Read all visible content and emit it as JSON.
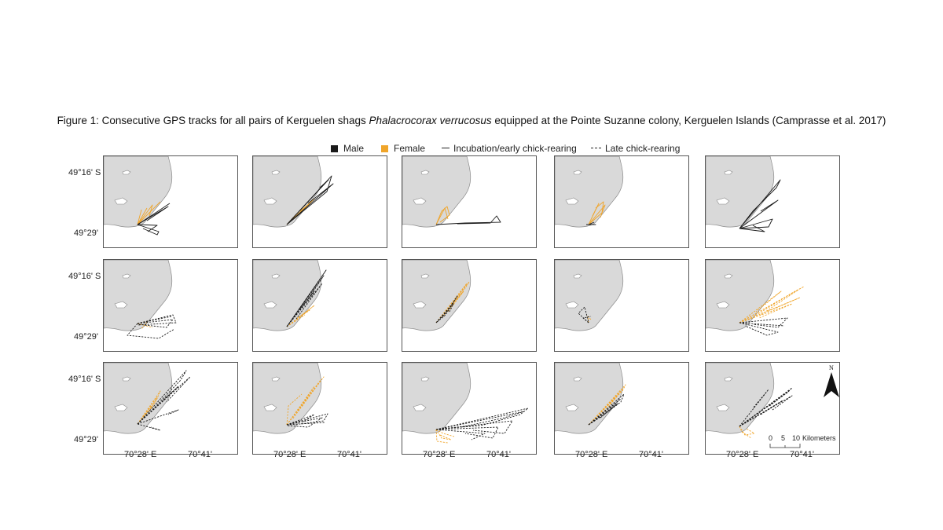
{
  "caption": {
    "prefix": "Figure 1: Consecutive GPS tracks for all pairs of Kerguelen shags ",
    "species": "Phalacrocorax verrucosus",
    "suffix": " equipped at the Pointe Suzanne colony, Kerguelen Islands (Camprasse et al. 2017)"
  },
  "legend": {
    "male": "Male",
    "female": "Female",
    "incubation": "Incubation/early chick-rearing",
    "late": "Late chick-rearing"
  },
  "axes": {
    "y_ticks": [
      "49°16' S",
      "49°29'"
    ],
    "x_ticks": [
      "70°28' E",
      "70°41'"
    ]
  },
  "north_label": "N",
  "scale_bar": {
    "ticks": [
      "0",
      "5",
      "10"
    ],
    "unit": "Kilometers"
  },
  "colors": {
    "male": "#1a1a1a",
    "female": "#f0a52a",
    "land": "#d9d9d9",
    "coast": "#8a8a8a"
  },
  "map_data": {
    "panels_per_row": 5,
    "rows": 3,
    "panels": [
      {
        "row": 1,
        "col": 1,
        "male": "incubation",
        "female": "incubation"
      },
      {
        "row": 1,
        "col": 2,
        "male": "incubation",
        "female": "incubation"
      },
      {
        "row": 1,
        "col": 3,
        "male": "incubation",
        "female": "incubation"
      },
      {
        "row": 1,
        "col": 4,
        "male": "incubation",
        "female": "incubation"
      },
      {
        "row": 1,
        "col": 5,
        "male": "incubation",
        "female": "incubation"
      },
      {
        "row": 2,
        "col": 1,
        "male": "late",
        "female": "late"
      },
      {
        "row": 2,
        "col": 2,
        "male": "late",
        "female": "late"
      },
      {
        "row": 2,
        "col": 3,
        "male": "late",
        "female": "late"
      },
      {
        "row": 2,
        "col": 4,
        "male": "late",
        "female": "late"
      },
      {
        "row": 2,
        "col": 5,
        "male": "late",
        "female": "late"
      },
      {
        "row": 3,
        "col": 1,
        "male": "late",
        "female": "late"
      },
      {
        "row": 3,
        "col": 2,
        "male": "late",
        "female": "late"
      },
      {
        "row": 3,
        "col": 3,
        "male": "late",
        "female": "late"
      },
      {
        "row": 3,
        "col": 4,
        "male": "late",
        "female": "late"
      },
      {
        "row": 3,
        "col": 5,
        "male": "late",
        "female": "late"
      }
    ]
  }
}
